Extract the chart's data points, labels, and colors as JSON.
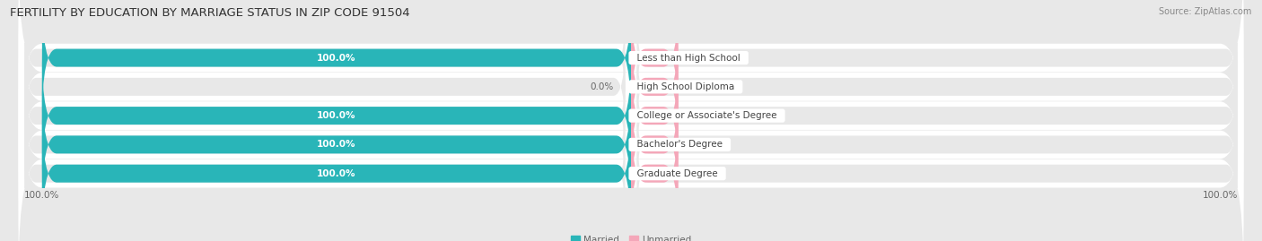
{
  "title": "FERTILITY BY EDUCATION BY MARRIAGE STATUS IN ZIP CODE 91504",
  "source": "Source: ZipAtlas.com",
  "categories": [
    "Less than High School",
    "High School Diploma",
    "College or Associate's Degree",
    "Bachelor's Degree",
    "Graduate Degree"
  ],
  "married_values": [
    100.0,
    0.0,
    100.0,
    100.0,
    100.0
  ],
  "unmarried_values": [
    0.0,
    0.0,
    0.0,
    0.0,
    0.0
  ],
  "married_color": "#29B5B8",
  "unmarried_color": "#F4A7B9",
  "married_color_light": "#A8D8DA",
  "bar_bg_color": "#e8e8e8",
  "row_bg_color": "#f2f2f2",
  "white_row_bg": "#fafafa",
  "background_color": "#e8e8e8",
  "label_color_white": "#ffffff",
  "label_color_dark": "#666666",
  "title_fontsize": 9.5,
  "source_fontsize": 7,
  "value_fontsize": 7.5,
  "legend_fontsize": 7.5,
  "category_fontsize": 7.5,
  "bar_max": 100,
  "unmarried_bar_width": 8,
  "xlim_left": -105,
  "xlim_right": 105
}
